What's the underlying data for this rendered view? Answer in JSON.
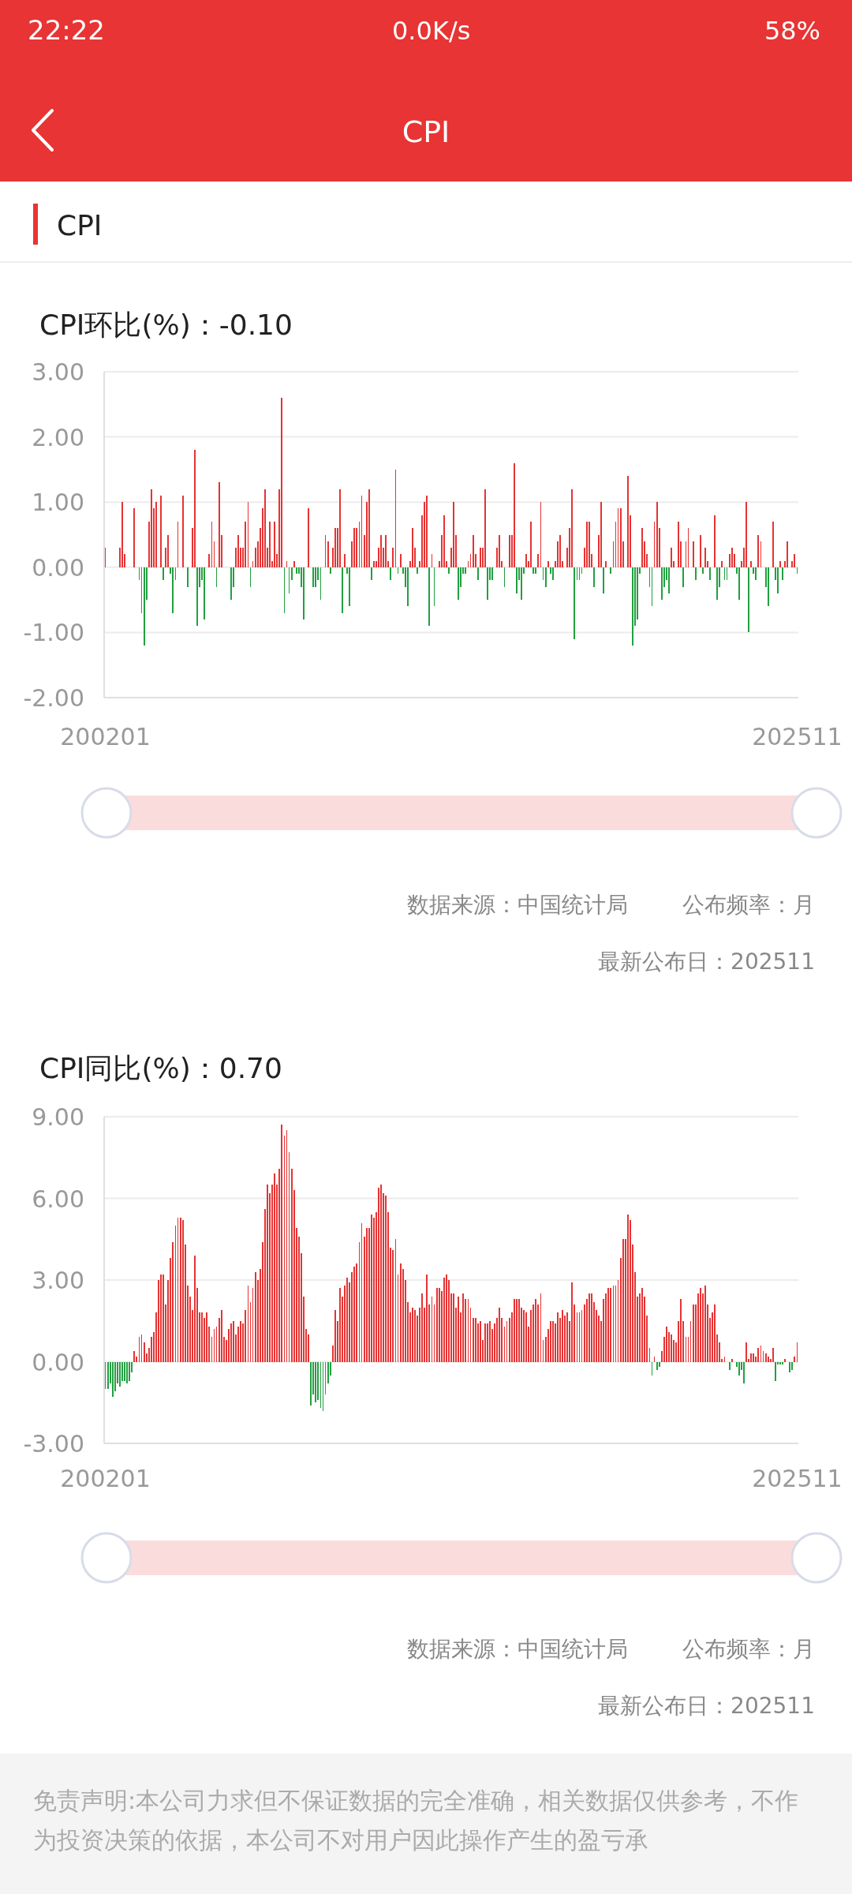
{
  "chart_data": [
    {
      "type": "bar",
      "title": "CPI环比(%)：-0.10",
      "annotations": [
        "22:22",
        "0.0K/s",
        "58%",
        "CPI",
        "CPI",
        "数据来源：中国统计局",
        "公布频率：月",
        "最新公布日：202511"
      ],
      "categories": [
        "200201",
        null,
        null,
        null,
        null,
        null,
        null,
        null,
        null,
        null,
        null,
        null,
        null,
        null,
        null,
        null,
        null,
        null,
        null,
        null,
        null,
        null,
        null,
        null,
        null,
        null,
        null,
        null,
        null,
        null,
        null,
        null,
        null,
        null,
        null,
        null,
        null,
        null,
        null,
        null,
        null,
        null,
        null,
        null,
        null,
        null,
        null,
        null,
        null,
        null,
        null,
        null,
        null,
        null,
        null,
        null,
        null,
        null,
        null,
        null,
        null,
        null,
        null,
        null,
        null,
        null,
        null,
        null,
        null,
        null,
        null,
        null,
        null,
        null,
        null,
        null,
        null,
        null,
        null,
        null,
        null,
        null,
        null,
        null,
        null,
        null,
        null,
        null,
        null,
        null,
        null,
        null,
        null,
        null,
        null,
        null,
        null,
        null,
        null,
        null,
        null,
        null,
        null,
        null,
        null,
        null,
        null,
        null,
        null,
        null,
        null,
        null,
        null,
        null,
        null,
        null,
        null,
        null,
        null,
        null,
        null,
        null,
        null,
        null,
        null,
        null,
        null,
        null,
        null,
        null,
        null,
        null,
        null,
        null,
        null,
        null,
        null,
        null,
        null,
        null,
        null,
        null,
        null,
        null,
        null,
        null,
        null,
        null,
        null,
        null,
        null,
        null,
        null,
        null,
        null,
        null,
        null,
        null,
        null,
        null,
        null,
        null,
        null,
        null,
        null,
        null,
        null,
        null,
        null,
        null,
        null,
        null,
        null,
        null,
        null,
        null,
        null,
        null,
        null,
        null,
        null,
        null,
        null,
        null,
        null,
        null,
        null,
        null,
        null,
        null,
        null,
        null,
        null,
        null,
        null,
        null,
        null,
        null,
        null,
        null,
        null,
        null,
        null,
        null,
        null,
        null,
        null,
        null,
        null,
        null,
        null,
        null,
        null,
        null,
        null,
        null,
        null,
        null,
        null,
        null,
        null,
        null,
        null,
        null,
        null,
        null,
        null,
        null,
        null,
        null,
        null,
        null,
        null,
        null,
        null,
        null,
        null,
        null,
        null,
        null,
        null,
        null,
        null,
        null,
        null,
        null,
        null,
        null,
        null,
        null,
        null,
        null,
        null,
        null,
        null,
        null,
        null,
        null,
        null,
        null,
        null,
        null,
        null,
        null,
        null,
        null,
        null,
        null,
        null,
        null,
        null,
        null,
        null,
        null,
        null,
        null,
        null,
        null,
        null,
        null,
        null,
        null,
        null,
        null,
        null,
        null,
        "202511"
      ],
      "values": [
        0.3,
        null,
        null,
        null,
        null,
        null,
        0.3,
        1.0,
        0.2,
        null,
        null,
        null,
        0.9,
        null,
        -0.2,
        -0.7,
        -1.2,
        -0.5,
        0.7,
        1.2,
        0.9,
        1.0,
        null,
        1.1,
        -0.2,
        0.3,
        0.5,
        -0.1,
        -0.7,
        -0.2,
        0.7,
        null,
        1.1,
        null,
        -0.3,
        null,
        0.6,
        1.8,
        -0.9,
        -0.3,
        -0.2,
        -0.8,
        null,
        0.2,
        0.7,
        0.4,
        -0.3,
        1.3,
        0.5,
        null,
        null,
        null,
        -0.5,
        -0.3,
        0.3,
        0.5,
        0.3,
        0.3,
        0.7,
        1.0,
        -0.3,
        0.1,
        0.3,
        0.4,
        0.6,
        0.9,
        1.2,
        0.3,
        0.7,
        0.1,
        0.7,
        0.2,
        1.2,
        2.6,
        -0.7,
        0.1,
        -0.4,
        -0.2,
        0.1,
        -0.1,
        -0.1,
        -0.3,
        -0.8,
        null,
        0.9,
        null,
        -0.3,
        -0.3,
        -0.2,
        -0.5,
        null,
        0.5,
        0.4,
        -0.1,
        0.3,
        0.6,
        0.6,
        1.2,
        -0.7,
        0.2,
        -0.1,
        -0.6,
        0.4,
        0.6,
        0.6,
        0.7,
        1.1,
        0.5,
        1.0,
        1.2,
        -0.2,
        0.1,
        0.1,
        0.3,
        0.5,
        0.3,
        0.5,
        0.1,
        -0.2,
        0.3,
        1.5,
        -0.1,
        0.2,
        -0.1,
        -0.3,
        -0.6,
        0.1,
        0.6,
        0.3,
        -0.1,
        0.1,
        0.8,
        1.0,
        1.1,
        -0.9,
        0.2,
        -0.6,
        0.0,
        0.1,
        0.5,
        0.8,
        0.1,
        -0.1,
        0.3,
        1.0,
        0.5,
        -0.5,
        -0.3,
        -0.1,
        -0.1,
        0.1,
        0.2,
        0.5,
        0.2,
        -0.2,
        0.3,
        0.3,
        1.2,
        -0.5,
        -0.2,
        -0.2,
        0.0,
        0.3,
        0.5,
        0.1,
        -0.3,
        0.0,
        0.5,
        0.5,
        1.6,
        -0.4,
        -0.2,
        -0.5,
        -0.1,
        0.2,
        0.1,
        0.7,
        -0.1,
        -0.1,
        0.2,
        1.0,
        -0.2,
        -0.3,
        0.1,
        -0.1,
        -0.2,
        0.1,
        0.4,
        0.5,
        0.1,
        0.0,
        0.3,
        0.6,
        1.2,
        -1.1,
        -0.2,
        -0.2,
        -0.1,
        0.3,
        0.7,
        0.7,
        0.2,
        -0.3,
        0.0,
        0.5,
        1.0,
        -0.4,
        0.1,
        0.0,
        -0.1,
        0.4,
        0.7,
        0.9,
        0.9,
        0.4,
        0.0,
        1.4,
        0.8,
        -1.2,
        -0.9,
        -0.8,
        -0.1,
        0.6,
        0.4,
        0.2,
        -0.3,
        -0.6,
        0.7,
        1.0,
        0.6,
        -0.5,
        -0.3,
        -0.2,
        -0.4,
        0.3,
        0.1,
        0.0,
        0.7,
        0.4,
        -0.3,
        0.4,
        0.6,
        0.0,
        0.4,
        -0.2,
        0.0,
        0.5,
        -0.1,
        0.3,
        0.1,
        -0.2,
        0.0,
        0.8,
        -0.5,
        -0.3,
        0.1,
        -0.2,
        -0.2,
        0.2,
        0.3,
        0.2,
        -0.1,
        -0.5,
        0.1,
        0.3,
        1.0,
        -1.0,
        0.1,
        -0.1,
        -0.2,
        0.5,
        0.4,
        0.0,
        -0.3,
        -0.6,
        0.0,
        0.7,
        -0.2,
        -0.4,
        0.1,
        -0.2,
        0.1,
        0.4,
        0.0,
        0.1,
        0.2,
        -0.1
      ],
      "colors": [
        "#e63333",
        null,
        null,
        null,
        null,
        null,
        "#e63333",
        "#e63333",
        "#e63333",
        null,
        null,
        null,
        "#e63333",
        null,
        "#22a040",
        "#22a040",
        "#22a040",
        "#22a040",
        "#e63333",
        "#e63333",
        "#e63333",
        "#e63333",
        null,
        "#e63333",
        "#22a040",
        "#e63333",
        "#e63333",
        "#22a040",
        "#22a040",
        "#22a040",
        "#e63333",
        null,
        "#e63333",
        null,
        "#22a040",
        null,
        "#e63333",
        "#e63333",
        "#22a040",
        "#22a040",
        "#22a040",
        "#22a040",
        null,
        "#e63333",
        "#e63333",
        "#e63333",
        "#22a040",
        "#e63333",
        "#e63333",
        null,
        null,
        null,
        "#22a040",
        "#22a040",
        "#e63333",
        "#e63333",
        "#e63333",
        "#e63333",
        "#e63333",
        "#e63333",
        "#22a040",
        "#e63333",
        "#e63333",
        "#e63333",
        "#e63333",
        "#e63333",
        "#e63333",
        "#e63333",
        "#e63333",
        "#e63333",
        "#e63333",
        "#e63333",
        "#e63333",
        "#e63333",
        "#22a040",
        "#e63333",
        "#22a040",
        "#22a040",
        "#e63333",
        "#22a040",
        "#22a040",
        "#22a040",
        "#22a040",
        null,
        "#e63333",
        null,
        "#22a040",
        "#22a040",
        "#22a040",
        "#22a040",
        null,
        "#e63333",
        "#e63333",
        "#22a040",
        "#e63333",
        "#e63333",
        "#e63333",
        "#e63333",
        "#22a040",
        "#e63333",
        "#22a040",
        "#22a040",
        "#e63333",
        "#e63333",
        "#e63333",
        "#e63333",
        "#e63333",
        "#e63333",
        "#e63333",
        "#e63333",
        "#22a040",
        "#e63333",
        "#e63333",
        "#e63333",
        "#e63333",
        "#e63333",
        "#e63333",
        "#e63333",
        "#22a040",
        "#e63333",
        "#e63333",
        "#22a040",
        "#e63333",
        "#22a040",
        "#22a040",
        "#22a040",
        "#e63333",
        "#e63333",
        "#e63333",
        "#22a040",
        "#e63333",
        "#e63333",
        "#e63333",
        "#e63333",
        "#22a040",
        "#e63333",
        "#22a040",
        "#e63333",
        "#e63333",
        "#e63333",
        "#e63333",
        "#e63333",
        "#22a040",
        "#e63333",
        "#e63333",
        "#e63333",
        "#22a040",
        "#22a040",
        "#22a040",
        "#22a040",
        "#e63333",
        "#e63333",
        "#e63333",
        "#e63333",
        "#22a040",
        "#e63333",
        "#e63333",
        "#e63333",
        "#22a040",
        "#22a040",
        "#22a040",
        "#e63333",
        "#e63333",
        "#e63333",
        "#e63333",
        "#22a040",
        "#e63333",
        "#e63333",
        "#e63333",
        "#e63333",
        "#22a040",
        "#22a040",
        "#22a040",
        "#22a040",
        "#e63333",
        "#e63333",
        "#e63333",
        "#22a040",
        "#22a040",
        "#e63333",
        "#e63333",
        "#22a040",
        "#22a040",
        "#e63333",
        "#22a040",
        "#22a040",
        "#e63333",
        "#e63333",
        "#e63333",
        "#e63333",
        "#e63333",
        "#e63333",
        "#e63333",
        "#e63333",
        "#22a040",
        "#22a040",
        "#22a040",
        "#22a040",
        "#e63333",
        "#e63333",
        "#e63333",
        "#e63333",
        "#22a040",
        "#e63333",
        "#e63333",
        "#e63333",
        "#22a040",
        "#e63333",
        "#e63333",
        "#22a040",
        "#e63333",
        "#e63333",
        "#e63333",
        "#e63333",
        "#e63333",
        "#e63333",
        "#e63333",
        "#e63333",
        "#22a040",
        "#22a040",
        "#22a040",
        "#22a040",
        "#e63333",
        "#e63333",
        "#e63333",
        "#22a040",
        "#22a040",
        "#e63333",
        "#e63333",
        "#e63333",
        "#22a040",
        "#22a040",
        "#22a040",
        "#22a040",
        "#e63333",
        "#e63333",
        "#e63333",
        "#e63333",
        "#e63333",
        "#22a040",
        "#e63333",
        "#e63333",
        "#e63333",
        "#e63333",
        "#22a040",
        "#e63333",
        "#e63333",
        "#22a040",
        "#e63333",
        "#e63333",
        "#22a040",
        "#e63333",
        "#e63333",
        "#22a040",
        "#22a040",
        "#e63333",
        "#22a040",
        "#22a040",
        "#e63333",
        "#e63333",
        "#e63333",
        "#22a040",
        "#22a040",
        "#e63333",
        "#e63333",
        "#e63333",
        "#22a040",
        "#e63333",
        "#22a040",
        "#22a040",
        "#e63333",
        "#e63333",
        "#e63333",
        "#22a040",
        "#22a040",
        "#e63333",
        "#e63333",
        "#22a040",
        "#22a040",
        "#e63333",
        "#22a040",
        "#e63333",
        "#e63333",
        "#e63333",
        "#e63333",
        "#e63333",
        "#22a040"
      ],
      "ylim": [
        -2,
        3
      ],
      "yticks": [
        {
          "value": -2,
          "label": "-2.00"
        },
        {
          "value": -1,
          "label": "-1.00"
        },
        {
          "value": 0,
          "label": "0.00"
        },
        {
          "value": 1,
          "label": "1.00"
        },
        {
          "value": 2,
          "label": "2.00"
        },
        {
          "value": 3,
          "label": "3.00"
        }
      ],
      "grid": "y"
    },
    {
      "type": "bar",
      "title": "CPI同比(%)：0.70",
      "annotations": [
        "数据来源：中国统计局",
        "公布频率：月",
        "最新公布日：202511",
        "免责声明:本公司力求但不保证数据的完全准确，相关数据仅供参考，不作为投资决策的依据，本公司不对用户因此操作产生的盈亏承"
      ],
      "categories": [
        "200201",
        null,
        null,
        null,
        null,
        null,
        null,
        null,
        null,
        null,
        null,
        null,
        null,
        null,
        null,
        null,
        null,
        null,
        null,
        null,
        null,
        null,
        null,
        null,
        null,
        null,
        null,
        null,
        null,
        null,
        null,
        null,
        null,
        null,
        null,
        null,
        null,
        null,
        null,
        null,
        null,
        null,
        null,
        null,
        null,
        null,
        null,
        null,
        null,
        null,
        null,
        null,
        null,
        null,
        null,
        null,
        null,
        null,
        null,
        null,
        null,
        null,
        null,
        null,
        null,
        null,
        null,
        null,
        null,
        null,
        null,
        null,
        null,
        null,
        null,
        null,
        null,
        null,
        null,
        null,
        null,
        null,
        null,
        null,
        null,
        null,
        null,
        null,
        null,
        null,
        null,
        null,
        null,
        null,
        null,
        null,
        null,
        null,
        null,
        null,
        null,
        null,
        null,
        null,
        null,
        null,
        null,
        null,
        null,
        null,
        null,
        null,
        null,
        null,
        null,
        null,
        null,
        null,
        null,
        null,
        null,
        null,
        null,
        null,
        null,
        null,
        null,
        null,
        null,
        null,
        null,
        null,
        null,
        null,
        null,
        null,
        null,
        null,
        null,
        null,
        null,
        null,
        null,
        null,
        null,
        null,
        null,
        null,
        null,
        null,
        null,
        null,
        null,
        null,
        null,
        null,
        null,
        null,
        null,
        null,
        null,
        null,
        null,
        null,
        null,
        null,
        null,
        null,
        null,
        null,
        null,
        null,
        null,
        null,
        null,
        null,
        null,
        null,
        null,
        null,
        null,
        null,
        null,
        null,
        null,
        null,
        null,
        null,
        null,
        null,
        null,
        null,
        null,
        null,
        null,
        null,
        null,
        null,
        null,
        null,
        null,
        null,
        null,
        null,
        null,
        null,
        null,
        null,
        null,
        null,
        null,
        null,
        null,
        null,
        null,
        null,
        null,
        null,
        null,
        null,
        null,
        null,
        null,
        null,
        null,
        null,
        null,
        null,
        null,
        null,
        null,
        null,
        null,
        null,
        null,
        null,
        null,
        null,
        null,
        null,
        null,
        null,
        null,
        null,
        null,
        null,
        null,
        null,
        null,
        null,
        null,
        null,
        null,
        null,
        null,
        null,
        null,
        null,
        null,
        null,
        null,
        null,
        null,
        null,
        null,
        null,
        null,
        null,
        null,
        null,
        null,
        null,
        null,
        null,
        null,
        null,
        null,
        null,
        null,
        null,
        null,
        null,
        null,
        null,
        null,
        null,
        "202511"
      ],
      "values": [
        -1.0,
        -1.0,
        -0.8,
        -1.3,
        -1.1,
        -0.8,
        -0.9,
        -0.7,
        -0.7,
        -0.8,
        -0.7,
        -0.4,
        0.4,
        0.2,
        0.9,
        1.0,
        0.7,
        0.3,
        0.5,
        0.9,
        1.1,
        1.8,
        3.0,
        3.2,
        3.2,
        2.1,
        3.0,
        3.8,
        4.4,
        5.0,
        5.3,
        5.3,
        5.2,
        4.3,
        2.8,
        2.4,
        1.9,
        3.9,
        2.7,
        1.8,
        1.8,
        1.6,
        1.8,
        1.3,
        0.9,
        1.2,
        1.3,
        1.6,
        1.9,
        0.9,
        0.8,
        1.2,
        1.4,
        1.5,
        1.0,
        1.3,
        1.5,
        1.4,
        1.9,
        2.8,
        2.2,
        2.7,
        3.3,
        3.0,
        3.4,
        4.4,
        5.6,
        6.5,
        6.2,
        6.5,
        6.9,
        6.5,
        7.1,
        8.7,
        8.3,
        8.5,
        7.7,
        7.1,
        6.3,
        4.9,
        4.6,
        4.0,
        2.4,
        1.2,
        1.0,
        -1.6,
        -1.2,
        -1.5,
        -1.4,
        -1.7,
        -1.8,
        -1.2,
        -0.8,
        -0.5,
        0.6,
        1.9,
        1.5,
        2.7,
        2.4,
        2.8,
        3.1,
        2.9,
        3.3,
        3.5,
        3.6,
        4.4,
        5.1,
        4.6,
        4.9,
        4.9,
        5.4,
        5.3,
        5.5,
        6.4,
        6.5,
        6.2,
        6.1,
        5.5,
        4.2,
        4.1,
        4.5,
        3.2,
        3.6,
        3.4,
        3.0,
        2.2,
        1.8,
        2.0,
        1.9,
        1.7,
        2.0,
        2.5,
        2.0,
        3.2,
        2.1,
        2.4,
        2.1,
        2.7,
        2.7,
        2.6,
        3.1,
        3.2,
        3.0,
        2.5,
        2.5,
        2.0,
        2.4,
        1.8,
        2.5,
        2.3,
        2.3,
        2.0,
        1.6,
        1.6,
        1.4,
        1.5,
        0.8,
        1.4,
        1.4,
        1.5,
        1.2,
        1.4,
        1.6,
        2.0,
        1.6,
        1.3,
        1.5,
        1.6,
        1.8,
        2.3,
        2.3,
        2.3,
        2.0,
        1.9,
        1.8,
        1.3,
        1.9,
        2.1,
        2.3,
        2.1,
        2.5,
        0.8,
        0.9,
        1.2,
        1.5,
        1.5,
        1.4,
        1.8,
        1.6,
        1.9,
        1.7,
        1.8,
        1.5,
        2.9,
        2.1,
        1.8,
        1.8,
        1.9,
        2.1,
        2.3,
        2.5,
        2.5,
        2.2,
        1.9,
        1.7,
        1.5,
        2.3,
        2.5,
        2.7,
        2.7,
        2.8,
        2.8,
        3.0,
        3.8,
        4.5,
        4.5,
        5.4,
        5.2,
        4.3,
        3.3,
        2.4,
        2.5,
        2.7,
        2.4,
        1.7,
        0.5,
        -0.5,
        0.2,
        -0.3,
        -0.2,
        0.4,
        0.9,
        1.3,
        1.1,
        1.0,
        0.8,
        0.7,
        1.5,
        2.3,
        1.5,
        0.9,
        0.9,
        1.5,
        2.1,
        2.1,
        2.5,
        2.7,
        2.5,
        2.8,
        2.1,
        1.6,
        1.8,
        2.1,
        1.0,
        0.7,
        0.1,
        0.2,
        0.0,
        -0.3,
        0.1,
        0.0,
        -0.2,
        -0.5,
        -0.3,
        -0.8,
        0.7,
        0.1,
        0.3,
        0.3,
        0.2,
        0.5,
        0.6,
        0.4,
        0.3,
        0.2,
        0.1,
        0.5,
        -0.7,
        -0.1,
        -0.1,
        -0.1,
        0.1,
        0.0,
        -0.4,
        -0.3,
        0.2,
        0.7
      ],
      "colors": [
        "#22a040",
        "#22a040",
        "#22a040",
        "#22a040",
        "#22a040",
        "#22a040",
        "#22a040",
        "#22a040",
        "#22a040",
        "#22a040",
        "#22a040",
        "#22a040",
        "#e63333",
        "#e63333",
        "#e63333",
        "#e63333",
        "#e63333",
        "#e63333",
        "#e63333",
        "#e63333",
        "#e63333",
        "#e63333",
        "#e63333",
        "#e63333",
        "#e63333",
        "#e63333",
        "#e63333",
        "#e63333",
        "#e63333",
        "#e63333",
        "#e63333",
        "#e63333",
        "#e63333",
        "#e63333",
        "#e63333",
        "#e63333",
        "#e63333",
        "#e63333",
        "#e63333",
        "#e63333",
        "#e63333",
        "#e63333",
        "#e63333",
        "#e63333",
        "#e63333",
        "#e63333",
        "#e63333",
        "#e63333",
        "#e63333",
        "#e63333",
        "#e63333",
        "#e63333",
        "#e63333",
        "#e63333",
        "#e63333",
        "#e63333",
        "#e63333",
        "#e63333",
        "#e63333",
        "#e63333",
        "#e63333",
        "#e63333",
        "#e63333",
        "#e63333",
        "#e63333",
        "#e63333",
        "#e63333",
        "#e63333",
        "#e63333",
        "#e63333",
        "#e63333",
        "#e63333",
        "#e63333",
        "#e63333",
        "#e63333",
        "#e63333",
        "#e63333",
        "#e63333",
        "#e63333",
        "#e63333",
        "#e63333",
        "#e63333",
        "#e63333",
        "#e63333",
        "#e63333",
        "#22a040",
        "#22a040",
        "#22a040",
        "#22a040",
        "#22a040",
        "#22a040",
        "#22a040",
        "#22a040",
        "#22a040",
        "#e63333",
        "#e63333",
        "#e63333",
        "#e63333",
        "#e63333",
        "#e63333",
        "#e63333",
        "#e63333",
        "#e63333",
        "#e63333",
        "#e63333",
        "#e63333",
        "#e63333",
        "#e63333",
        "#e63333",
        "#e63333",
        "#e63333",
        "#e63333",
        "#e63333",
        "#e63333",
        "#e63333",
        "#e63333",
        "#e63333",
        "#e63333",
        "#e63333",
        "#e63333",
        "#e63333",
        "#e63333",
        "#e63333",
        "#e63333",
        "#e63333",
        "#e63333",
        "#e63333",
        "#e63333",
        "#e63333",
        "#e63333",
        "#e63333",
        "#e63333",
        "#e63333",
        "#e63333",
        "#e63333",
        "#e63333",
        "#e63333",
        "#e63333",
        "#e63333",
        "#e63333",
        "#e63333",
        "#e63333",
        "#e63333",
        "#e63333",
        "#e63333",
        "#e63333",
        "#e63333",
        "#e63333",
        "#e63333",
        "#e63333",
        "#e63333",
        "#e63333",
        "#e63333",
        "#e63333",
        "#e63333",
        "#e63333",
        "#e63333",
        "#e63333",
        "#e63333",
        "#e63333",
        "#e63333",
        "#e63333",
        "#e63333",
        "#e63333",
        "#e63333",
        "#e63333",
        "#e63333",
        "#e63333",
        "#e63333",
        "#e63333",
        "#e63333",
        "#e63333",
        "#e63333",
        "#e63333",
        "#e63333",
        "#e63333",
        "#e63333",
        "#e63333",
        "#e63333",
        "#e63333",
        "#e63333",
        "#e63333",
        "#e63333",
        "#e63333",
        "#e63333",
        "#e63333",
        "#e63333",
        "#e63333",
        "#e63333",
        "#e63333",
        "#e63333",
        "#e63333",
        "#e63333",
        "#e63333",
        "#e63333",
        "#e63333",
        "#e63333",
        "#e63333",
        "#e63333",
        "#e63333",
        "#e63333",
        "#e63333",
        "#e63333",
        "#e63333",
        "#e63333",
        "#e63333",
        "#e63333",
        "#e63333",
        "#e63333",
        "#e63333",
        "#e63333",
        "#e63333",
        "#e63333",
        "#e63333",
        "#e63333",
        "#e63333",
        "#e63333",
        "#e63333",
        "#e63333",
        "#e63333",
        "#e63333",
        "#e63333",
        "#e63333",
        "#e63333",
        "#e63333",
        "#e63333",
        "#22a040",
        "#e63333",
        "#22a040",
        "#22a040",
        "#e63333",
        "#e63333",
        "#e63333",
        "#e63333",
        "#e63333",
        "#e63333",
        "#e63333",
        "#e63333",
        "#e63333",
        "#e63333",
        "#e63333",
        "#e63333",
        "#e63333",
        "#e63333",
        "#e63333",
        "#e63333",
        "#e63333",
        "#e63333",
        "#e63333",
        "#e63333",
        "#e63333",
        "#e63333",
        "#e63333",
        "#e63333",
        "#e63333",
        "#e63333",
        "#e63333",
        "#e63333",
        "#22a040",
        "#e63333",
        "#e63333",
        "#22a040",
        "#22a040",
        "#22a040",
        "#22a040",
        "#e63333",
        "#e63333",
        "#e63333",
        "#e63333",
        "#e63333",
        "#e63333",
        "#e63333",
        "#e63333",
        "#e63333",
        "#e63333",
        "#e63333",
        "#e63333",
        "#22a040",
        "#22a040",
        "#22a040",
        "#22a040",
        "#e63333",
        "#e63333",
        "#22a040",
        "#22a040",
        "#e63333",
        "#e63333"
      ],
      "ylim": [
        -3,
        9
      ],
      "yticks": [
        {
          "value": -3,
          "label": "-3.00"
        },
        {
          "value": 0,
          "label": "0.00"
        },
        {
          "value": 3,
          "label": "3.00"
        },
        {
          "value": 6,
          "label": "6.00"
        },
        {
          "value": 9,
          "label": "9.00"
        }
      ],
      "grid": "y"
    }
  ]
}
